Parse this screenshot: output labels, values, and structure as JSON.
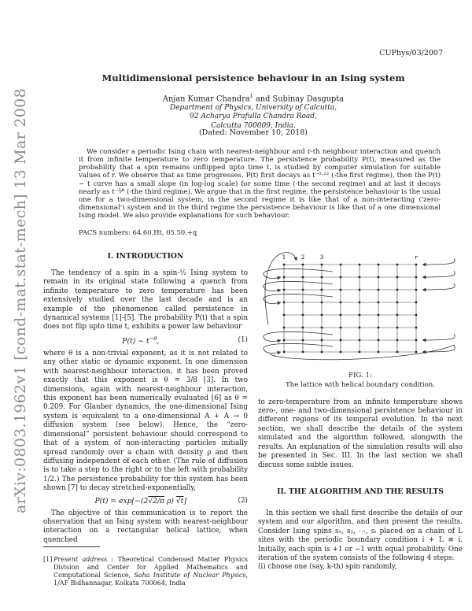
{
  "stamp": "arXiv:0803.1962v1  [cond-mat.stat-mech]  13 Mar 2008",
  "header": {
    "report_number": "CUPhys/03/2007"
  },
  "title": "Multidimensional persistence behaviour in an Ising system",
  "authors": {
    "name1": "Anjan Kumar Chandra",
    "footnote_mark": "1",
    "name2": " and Subinay Dasgupta",
    "affiliation_lines": [
      "Department of Physics, University of Calcutta,",
      "92 Acharya Prafulla Chandra Road,",
      "Calcutta 700009, India."
    ]
  },
  "dateline": "(Dated: November 10, 2018)",
  "abstract": "We consider a periodic Ising chain with nearest-neighbour and r-th neighbour interaction and quench it from infinite temperature to zero temperature. The persistence probability P(t), measured as the probability that a spin remains unflipped upto time t, is studied by computer simulation for suitable values of r. We observe that as time progresses, P(t) first decays as t⁻⁰·²² (-the first regime), then the P(t) − t curve has a small slope (in log-log scale) for some time (-the second regime) and at last it decays nearly as t⁻³⁄⁸ (-the third regime). We argue that in the first regime, the persistence behaviour is the usual one for a two-dimensional system, in the second regime it is like that of a non-interacting ('zero-dimensional') system and in the third regime the persistence behaviour is like that of a one dimensional Ising model. We also provide explanations for such behaviour.",
  "pacs": "PACS numbers: 64.60.Ht, 05.50.+q",
  "sections": {
    "intro": "I.   INTRODUCTION",
    "algorithm": "II.   THE ALGORITHM AND THE RESULTS"
  },
  "left_column": {
    "para1": "The tendency of a spin in a spin-½ Ising system to remain in its original state following a quench from infinite temperature to zero temperature has been extensively studied over the last decade and is an example of the phenomenon called persistence in dynamical systems [1]-[5]. The probability P(t) that a spin does not flip upto time t, exhibits a power law behaviour",
    "eq1": {
      "body": "P(t) ∼ t",
      "sup": "−θ",
      "tail": ",",
      "number": "(1)"
    },
    "para2": "where θ is a non-trivial exponent, as it is not related to any other static or dynamic exponent. In one dimension with nearest-neighbour interaction, it has been proved exactly that this exponent is θ = 3/8 [3]. In two dimensions, again with nearest-neighbour interaction, this exponent has been numerically evaluated [6] as θ = 0.209. For Glauber dynamics, the one-dimensional Ising system is equivalent to a one-dimensional A + A → 0 diffusion system (see below). Hence, the “zero-dimensional” persistent behaviour should correspond to that of a system of non-interacting particles initially spread randomly over a chain with density ρ and then diffusing independent of each other. (The rule of diffusion is to take a step to the right or to the left with probability 1/2.) The persistence probability for this system has been shown [7] to decay stretched-exponentially,",
    "eq2": {
      "pre": "P(t) = exp[−(2",
      "rad1": "√2/π",
      "mid": " ρ) ",
      "rad2": "√t",
      "post": "]",
      "number": "(2)"
    },
    "para3": "The objective of this communication is to report the observation that an Ising system with nearest-neighbour interaction on a rectangular helical lattice, when quenched",
    "footnote": {
      "marker": "[1]",
      "seg1": "Present address",
      "seg2": " : Theoretical Condensed Matter Physics Division and Center for Applied Mathematics and Computational Science, ",
      "seg3": "Saha Institute of Nuclear Physics",
      "seg4": ", 1/AF Bidhannagar, Kolkata 700064, India"
    }
  },
  "figure": {
    "labels": {
      "c1": "1",
      "c2": "2",
      "c3": "3",
      "cr": "r"
    },
    "caption_tag": "FIG. 1:",
    "caption_text": "The lattice with helical boundary condition."
  },
  "right_column": {
    "para1": "to zero-temperature from an infinite temperature shows zero-, one- and two-dimensional persistence behaviour in different regions of its temporal evolution. In the next section, we shall describe the details of the system simulated and the algorithm followed, alongwith the results. An explanation of the simulation results will also be presented in Sec. III. In the last section we shall discuss some subtle issues.",
    "para2": "In this section we shall first describe the details of our system and our algorithm, and then present the results. Consider Ising spins s₁, s₂, ⋯, sₗ placed on a chain of L sites with the periodic boundary condition i + L ≡ i. Initially, each spin is +1 or −1 with equal probability. One iteration of the system consists of the following 4 steps:",
    "para3": "(i) choose one (say, k-th) spin randomly,"
  }
}
